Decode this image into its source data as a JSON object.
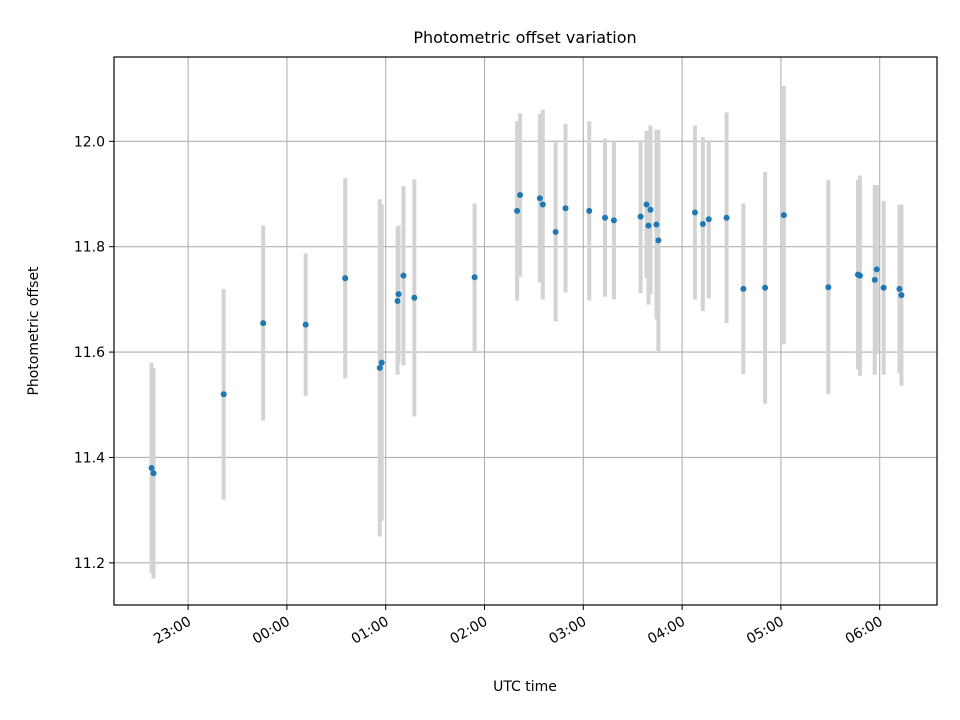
{
  "chart_data": {
    "type": "scatter",
    "title": "Photometric offset variation",
    "xlabel": "UTC time",
    "ylabel": "Photometric offset",
    "x_unit": "UTC hours since 00:00 (negative = previous day)",
    "xlim": [
      -1.75,
      6.58
    ],
    "ylim": [
      11.12,
      12.16
    ],
    "xticks": [
      {
        "value": -1.0,
        "label": "23:00"
      },
      {
        "value": 0.0,
        "label": "00:00"
      },
      {
        "value": 1.0,
        "label": "01:00"
      },
      {
        "value": 2.0,
        "label": "02:00"
      },
      {
        "value": 3.0,
        "label": "03:00"
      },
      {
        "value": 4.0,
        "label": "04:00"
      },
      {
        "value": 5.0,
        "label": "05:00"
      },
      {
        "value": 6.0,
        "label": "06:00"
      }
    ],
    "yticks": [
      {
        "value": 11.2,
        "label": "11.2"
      },
      {
        "value": 11.4,
        "label": "11.4"
      },
      {
        "value": 11.6,
        "label": "11.6"
      },
      {
        "value": 11.8,
        "label": "11.8"
      },
      {
        "value": 12.0,
        "label": "12.0"
      }
    ],
    "grid": true,
    "colors": {
      "point": "#1f77b4",
      "errorbar": "#d3d3d3",
      "grid": "#b0b0b0"
    },
    "series": [
      {
        "points": [
          {
            "x": -1.37,
            "y": 11.38,
            "err": 0.2
          },
          {
            "x": -1.35,
            "y": 11.37,
            "err": 0.2
          },
          {
            "x": -0.64,
            "y": 11.52,
            "err": 0.2
          },
          {
            "x": -0.24,
            "y": 11.655,
            "err": 0.185
          },
          {
            "x": 0.19,
            "y": 11.652,
            "err": 0.135
          },
          {
            "x": 0.59,
            "y": 11.74,
            "err": 0.19
          },
          {
            "x": 0.94,
            "y": 11.57,
            "err": 0.32
          },
          {
            "x": 0.96,
            "y": 11.58,
            "err": 0.3
          },
          {
            "x": 1.12,
            "y": 11.697,
            "err": 0.14
          },
          {
            "x": 1.13,
            "y": 11.71,
            "err": 0.13
          },
          {
            "x": 1.18,
            "y": 11.745,
            "err": 0.17
          },
          {
            "x": 1.29,
            "y": 11.703,
            "err": 0.225
          },
          {
            "x": 1.9,
            "y": 11.742,
            "err": 0.14
          },
          {
            "x": 2.33,
            "y": 11.868,
            "err": 0.17
          },
          {
            "x": 2.36,
            "y": 11.898,
            "err": 0.155
          },
          {
            "x": 2.56,
            "y": 11.892,
            "err": 0.16
          },
          {
            "x": 2.59,
            "y": 11.88,
            "err": 0.18
          },
          {
            "x": 2.72,
            "y": 11.828,
            "err": 0.17
          },
          {
            "x": 2.82,
            "y": 11.873,
            "err": 0.16
          },
          {
            "x": 3.06,
            "y": 11.868,
            "err": 0.17
          },
          {
            "x": 3.22,
            "y": 11.855,
            "err": 0.15
          },
          {
            "x": 3.31,
            "y": 11.85,
            "err": 0.15
          },
          {
            "x": 3.58,
            "y": 11.857,
            "err": 0.145
          },
          {
            "x": 3.64,
            "y": 11.88,
            "err": 0.14
          },
          {
            "x": 3.66,
            "y": 11.84,
            "err": 0.15
          },
          {
            "x": 3.68,
            "y": 11.87,
            "err": 0.16
          },
          {
            "x": 3.74,
            "y": 11.842,
            "err": 0.18
          },
          {
            "x": 3.76,
            "y": 11.812,
            "err": 0.21
          },
          {
            "x": 4.13,
            "y": 11.865,
            "err": 0.165
          },
          {
            "x": 4.21,
            "y": 11.843,
            "err": 0.165
          },
          {
            "x": 4.27,
            "y": 11.852,
            "err": 0.15
          },
          {
            "x": 4.45,
            "y": 11.855,
            "err": 0.2
          },
          {
            "x": 4.62,
            "y": 11.72,
            "err": 0.162
          },
          {
            "x": 4.84,
            "y": 11.722,
            "err": 0.22
          },
          {
            "x": 5.03,
            "y": 11.86,
            "err": 0.245
          },
          {
            "x": 5.48,
            "y": 11.723,
            "err": 0.203
          },
          {
            "x": 5.78,
            "y": 11.747,
            "err": 0.18
          },
          {
            "x": 5.8,
            "y": 11.745,
            "err": 0.19
          },
          {
            "x": 5.95,
            "y": 11.737,
            "err": 0.18
          },
          {
            "x": 5.97,
            "y": 11.757,
            "err": 0.16
          },
          {
            "x": 6.04,
            "y": 11.722,
            "err": 0.165
          },
          {
            "x": 6.2,
            "y": 11.72,
            "err": 0.16
          },
          {
            "x": 6.22,
            "y": 11.708,
            "err": 0.172
          }
        ]
      }
    ]
  }
}
